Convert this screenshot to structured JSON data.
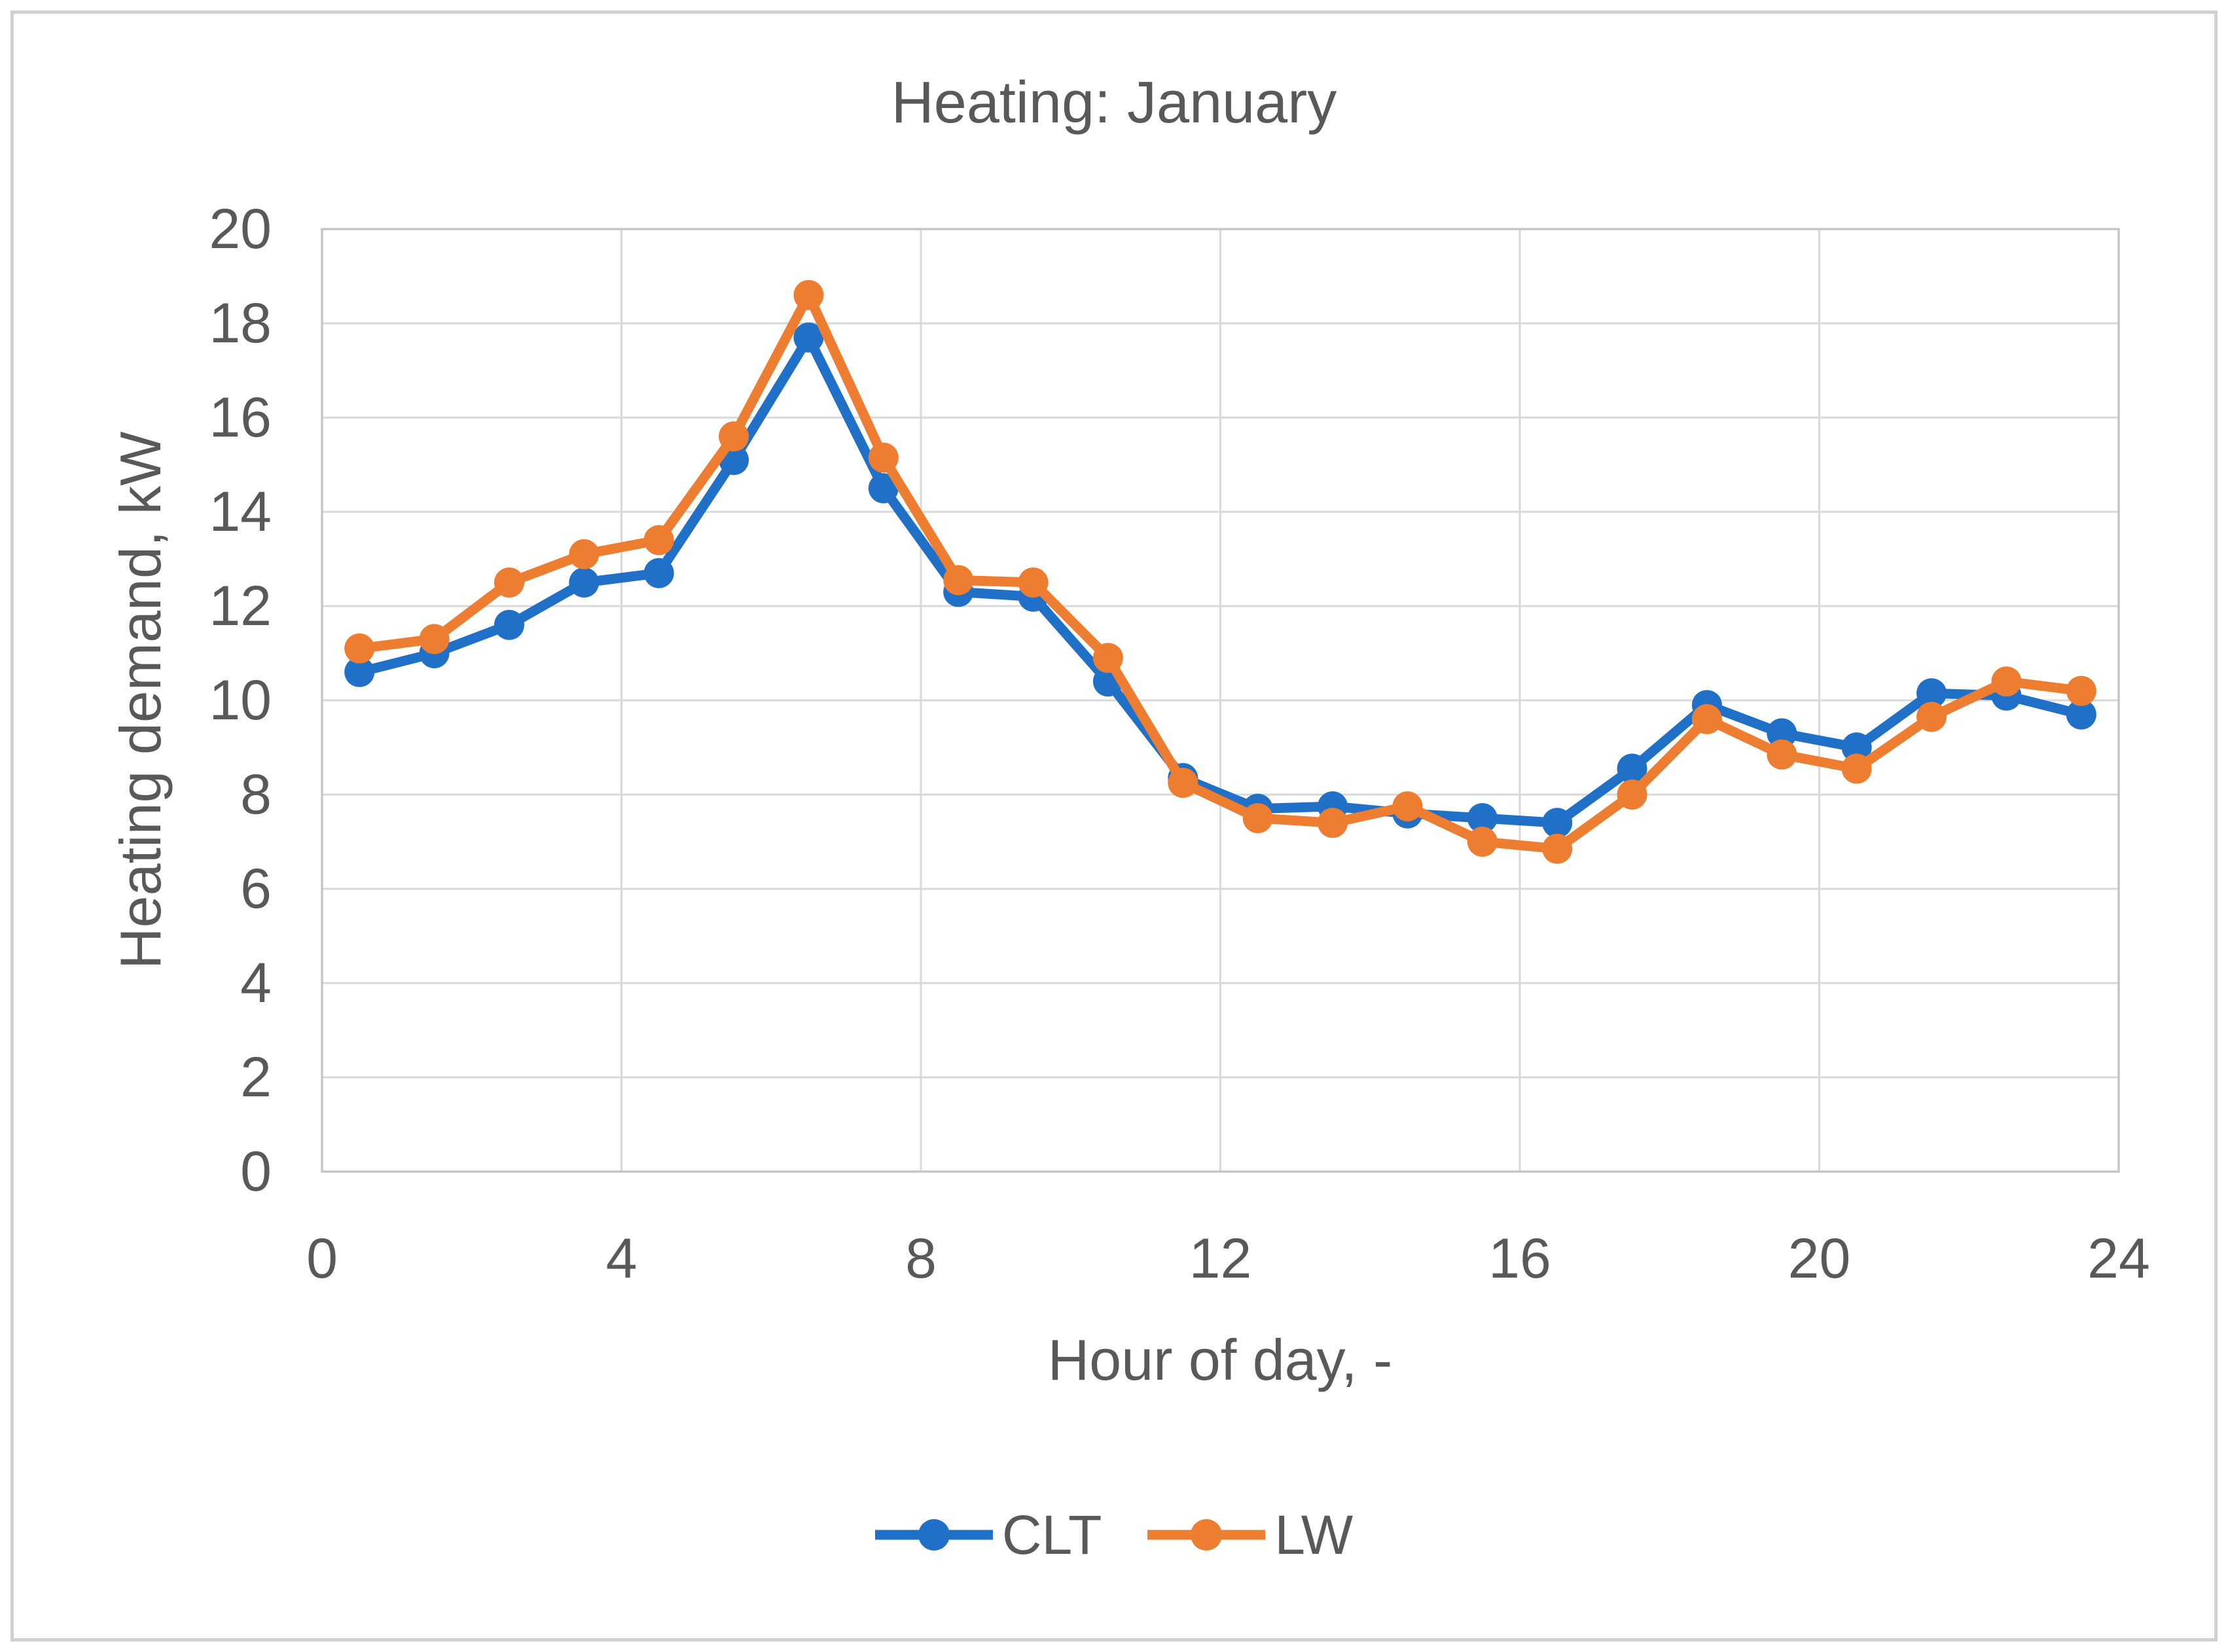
{
  "chart_data": {
    "type": "line",
    "title": "Heating: January",
    "xlabel": "Hour of day, -",
    "ylabel": "Heating demand, kW",
    "xlim": [
      0,
      24
    ],
    "ylim": [
      0,
      20
    ],
    "x_ticks": [
      0,
      4,
      8,
      12,
      16,
      20,
      24
    ],
    "y_ticks": [
      0,
      2,
      4,
      6,
      8,
      10,
      12,
      14,
      16,
      18,
      20
    ],
    "grid": true,
    "legend_position": "bottom-center",
    "x": [
      0.5,
      1.5,
      2.5,
      3.5,
      4.5,
      5.5,
      6.5,
      7.5,
      8.5,
      9.5,
      10.5,
      11.5,
      12.5,
      13.5,
      14.5,
      15.5,
      16.5,
      17.5,
      18.5,
      19.5,
      20.5,
      21.5,
      22.5,
      23.5
    ],
    "series": [
      {
        "name": "CLT",
        "color": "#2170C7",
        "values": [
          10.6,
          11.0,
          11.6,
          12.5,
          12.7,
          15.1,
          17.7,
          14.5,
          12.3,
          12.2,
          10.4,
          8.35,
          7.7,
          7.75,
          7.6,
          7.5,
          7.4,
          8.55,
          9.9,
          9.3,
          9.0,
          10.15,
          10.1,
          9.7
        ]
      },
      {
        "name": "LW",
        "color": "#ED7D31",
        "values": [
          11.1,
          11.3,
          12.5,
          13.1,
          13.4,
          15.6,
          18.6,
          15.15,
          12.55,
          12.5,
          10.9,
          8.25,
          7.5,
          7.4,
          7.75,
          7.0,
          6.85,
          8.0,
          9.6,
          8.85,
          8.55,
          9.65,
          10.4,
          10.2
        ]
      }
    ]
  },
  "colors": {
    "gridline": "#D9D9D9",
    "plot_border": "#C6C6C6",
    "text": "#595959",
    "outer_border": "#D0D0D0",
    "background": "#FFFFFF"
  }
}
